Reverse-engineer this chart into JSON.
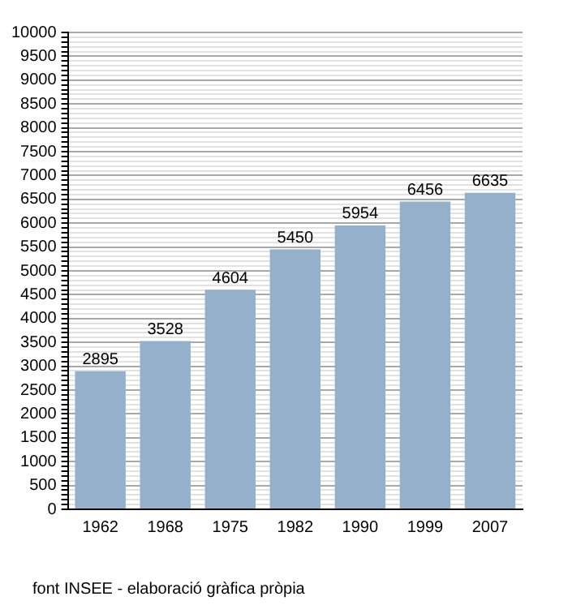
{
  "chart_data": {
    "type": "bar",
    "categories": [
      "1962",
      "1968",
      "1975",
      "1982",
      "1990",
      "1999",
      "2007"
    ],
    "values": [
      2895,
      3528,
      4604,
      5450,
      5954,
      6456,
      6635
    ],
    "color": "#95b0cb",
    "data_labels": true,
    "ylim": [
      0,
      10000
    ],
    "yticks": [
      0,
      {
        "value": 100,
        "label": null
      },
      {
        "value": 200,
        "label": null
      },
      {
        "value": 300,
        "label": null
      },
      {
        "value": 400,
        "label": null
      },
      500,
      {
        "value": 600,
        "label": null
      },
      {
        "value": 700,
        "label": null
      },
      {
        "value": 800,
        "label": null
      },
      {
        "value": 900,
        "label": null
      },
      1000,
      {
        "value": 1100,
        "label": null
      },
      {
        "value": 1200,
        "label": null
      },
      {
        "value": 1300,
        "label": null
      },
      {
        "value": 1400,
        "label": null
      },
      1500,
      {
        "value": 1600,
        "label": null
      },
      {
        "value": 1700,
        "label": null
      },
      {
        "value": 1800,
        "label": null
      },
      {
        "value": 1900,
        "label": null
      },
      2000,
      {
        "value": 2100,
        "label": null
      },
      {
        "value": 2200,
        "label": null
      },
      {
        "value": 2300,
        "label": null
      },
      {
        "value": 2400,
        "label": null
      },
      2500,
      {
        "value": 2600,
        "label": null
      },
      {
        "value": 2700,
        "label": null
      },
      {
        "value": 2800,
        "label": null
      },
      {
        "value": 2900,
        "label": null
      },
      3000,
      {
        "value": 3100,
        "label": null
      },
      {
        "value": 3200,
        "label": null
      },
      {
        "value": 3300,
        "label": null
      },
      {
        "value": 3400,
        "label": null
      },
      3500,
      {
        "value": 3600,
        "label": null
      },
      {
        "value": 3700,
        "label": null
      },
      {
        "value": 3800,
        "label": null
      },
      {
        "value": 3900,
        "label": null
      },
      4000,
      {
        "value": 4100,
        "label": null
      },
      {
        "value": 4200,
        "label": null
      },
      {
        "value": 4300,
        "label": null
      },
      {
        "value": 4400,
        "label": null
      },
      4500,
      {
        "value": 4600,
        "label": null
      },
      {
        "value": 4700,
        "label": null
      },
      {
        "value": 4800,
        "label": null
      },
      {
        "value": 4900,
        "label": null
      },
      5000,
      {
        "value": 5100,
        "label": null
      },
      {
        "value": 5200,
        "label": null
      },
      {
        "value": 5300,
        "label": null
      },
      {
        "value": 5400,
        "label": null
      },
      5500,
      {
        "value": 5600,
        "label": null
      },
      {
        "value": 5700,
        "label": null
      },
      {
        "value": 5800,
        "label": null
      },
      {
        "value": 5900,
        "label": null
      },
      6000,
      {
        "value": 6100,
        "label": null
      },
      {
        "value": 6200,
        "label": null
      },
      {
        "value": 6300,
        "label": null
      },
      {
        "value": 6400,
        "label": null
      },
      6500,
      {
        "value": 6600,
        "label": null
      },
      {
        "value": 6700,
        "label": null
      },
      {
        "value": 6800,
        "label": null
      },
      {
        "value": 6900,
        "label": null
      },
      7000,
      {
        "value": 7100,
        "label": null
      },
      {
        "value": 7200,
        "label": null
      },
      {
        "value": 7300,
        "label": null
      },
      {
        "value": 7400,
        "label": null
      },
      7500,
      {
        "value": 7600,
        "label": null
      },
      {
        "value": 7700,
        "label": null
      },
      {
        "value": 7800,
        "label": null
      },
      {
        "value": 7900,
        "label": null
      },
      8000,
      {
        "value": 8100,
        "label": null
      },
      {
        "value": 8200,
        "label": null
      },
      {
        "value": 8300,
        "label": null
      },
      {
        "value": 8400,
        "label": null
      },
      8500,
      {
        "value": 8600,
        "label": null
      },
      {
        "value": 8700,
        "label": null
      },
      {
        "value": 8800,
        "label": null
      },
      {
        "value": 8900,
        "label": null
      },
      9000,
      {
        "value": 9100,
        "label": null
      },
      {
        "value": 9200,
        "label": null
      },
      {
        "value": 9300,
        "label": null
      },
      {
        "value": 9400,
        "label": null
      },
      9500,
      {
        "value": 9600,
        "label": null
      },
      {
        "value": 9700,
        "label": null
      },
      {
        "value": 9800,
        "label": null
      },
      {
        "value": 9900,
        "label": null
      },
      10000
    ],
    "grid": "y",
    "legend": false,
    "annotations": [
      "font INSEE - elaboració gràfica pròpia"
    ]
  }
}
